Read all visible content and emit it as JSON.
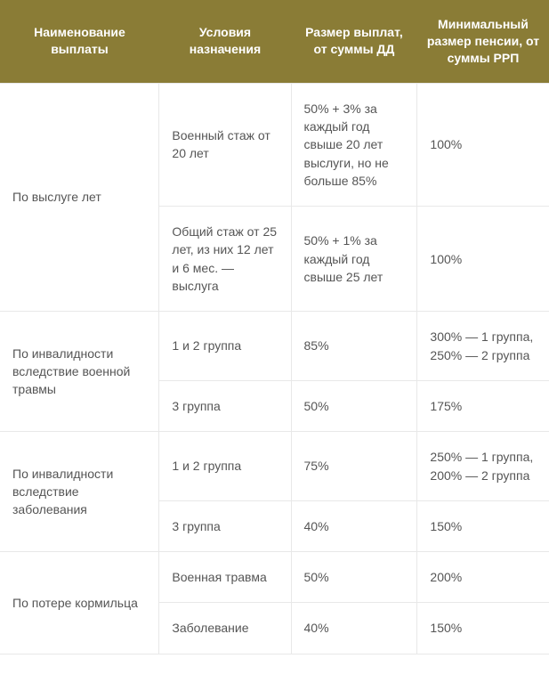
{
  "table": {
    "header_bg": "#8a7c36",
    "header_color": "#ffffff",
    "cell_color": "#555555",
    "border_color": "#e8e8e8",
    "fontsize_header": 14,
    "fontsize_cell": 14,
    "col_widths_pct": [
      29,
      24,
      23,
      24
    ],
    "columns": [
      "Наименование выплаты",
      "Условия назначения",
      "Размер выплат, от суммы ДД",
      "Минимальный размер пенсии, от суммы РРП"
    ],
    "rows": [
      {
        "c0": "По выслуге лет",
        "c0_rowspan": 2,
        "c1": "Военный стаж от 20 лет",
        "c2": "50% + 3% за каждый год свыше 20 лет выслуги, но не больше 85%",
        "c3": "100%"
      },
      {
        "c1": "Общий стаж от 25 лет, из них 12 лет и 6 мес. — выслуга",
        "c2": "50% + 1% за каждый год свыше 25 лет",
        "c3": "100%"
      },
      {
        "c0": "По инвалидности вследствие военной травмы",
        "c0_rowspan": 2,
        "c1": "1 и 2 группа",
        "c2": "85%",
        "c3": "300% — 1 группа, 250% — 2 группа"
      },
      {
        "c1": "3 группа",
        "c2": "50%",
        "c3": "175%"
      },
      {
        "c0": "По инвалидности вследствие заболевания",
        "c0_rowspan": 2,
        "c1": "1 и 2 группа",
        "c2": "75%",
        "c3": "250% — 1 группа, 200% — 2 группа"
      },
      {
        "c1": "3 группа",
        "c2": "40%",
        "c3": "150%"
      },
      {
        "c0": "По потере кормильца",
        "c0_rowspan": 2,
        "c1": "Военная травма",
        "c2": "50%",
        "c3": "200%"
      },
      {
        "c1": "Заболевание",
        "c2": "40%",
        "c3": "150%"
      }
    ]
  }
}
